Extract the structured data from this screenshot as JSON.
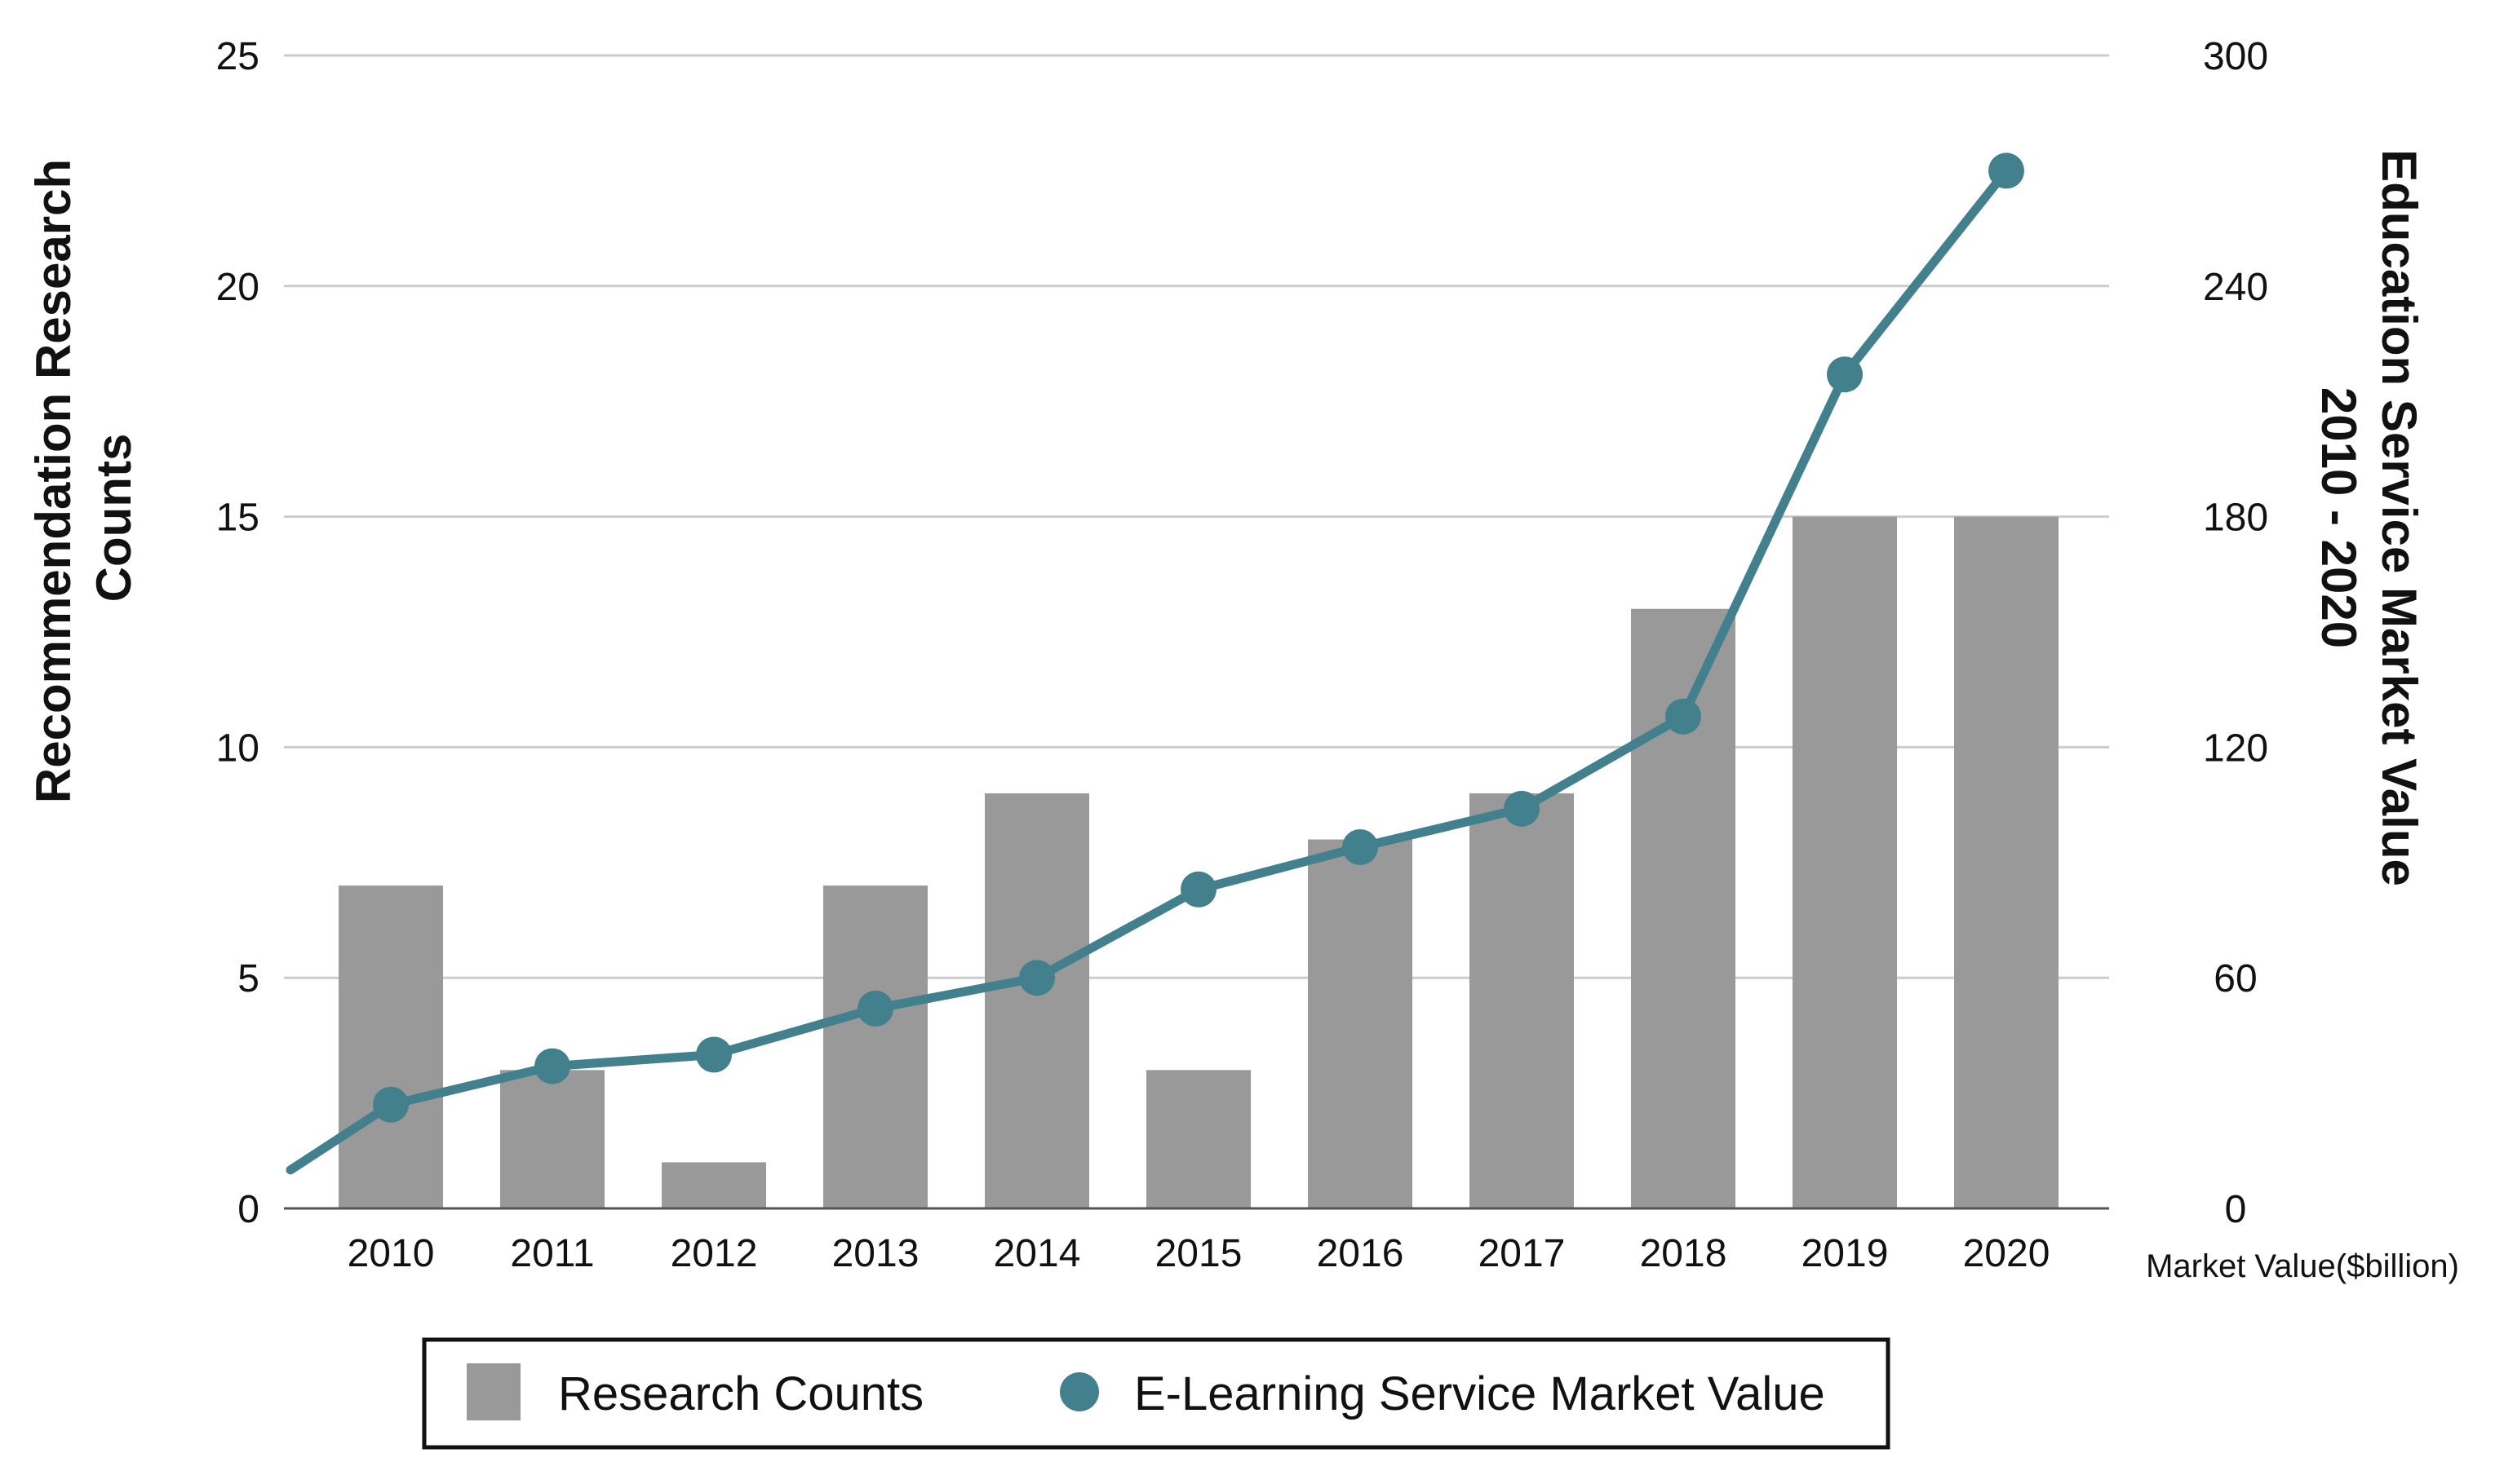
{
  "chart_data": {
    "type": "bar",
    "categories": [
      "2010",
      "2011",
      "2012",
      "2013",
      "2014",
      "2015",
      "2016",
      "2017",
      "2018",
      "2019",
      "2020"
    ],
    "series": [
      {
        "name": "Research Counts",
        "type": "bar",
        "axis": "left",
        "color": "#999999",
        "values": [
          7,
          3,
          1,
          7,
          9,
          3,
          8,
          9,
          13,
          15,
          15
        ]
      },
      {
        "name": "E-Learning Service Market Value",
        "type": "line",
        "axis": "right",
        "color": "#42808d",
        "start_value": 10,
        "values": [
          27,
          37,
          40,
          52,
          60,
          83,
          94,
          104,
          128,
          217,
          270
        ]
      }
    ],
    "left_axis": {
      "label_line1": "Recommendation Research",
      "label_line2": "Counts",
      "ticks": [
        "0",
        "5",
        "10",
        "15",
        "20",
        "25"
      ],
      "tick_values": [
        0,
        5,
        10,
        15,
        20,
        25
      ],
      "ylim": [
        0,
        25
      ]
    },
    "right_axis": {
      "label_line1": "Education Service Market Value",
      "label_line2": "2010 - 2020",
      "unit_label": "Market Value($billion)",
      "ticks": [
        "0",
        "60",
        "120",
        "180",
        "240",
        "300"
      ],
      "tick_values": [
        0,
        60,
        120,
        180,
        240,
        300
      ],
      "ylim": [
        0,
        300
      ]
    },
    "grid": true,
    "legend_position": "bottom-center",
    "legend": {
      "bar_label": "Research Counts",
      "line_label": "E-Learning Service Market Value"
    }
  }
}
